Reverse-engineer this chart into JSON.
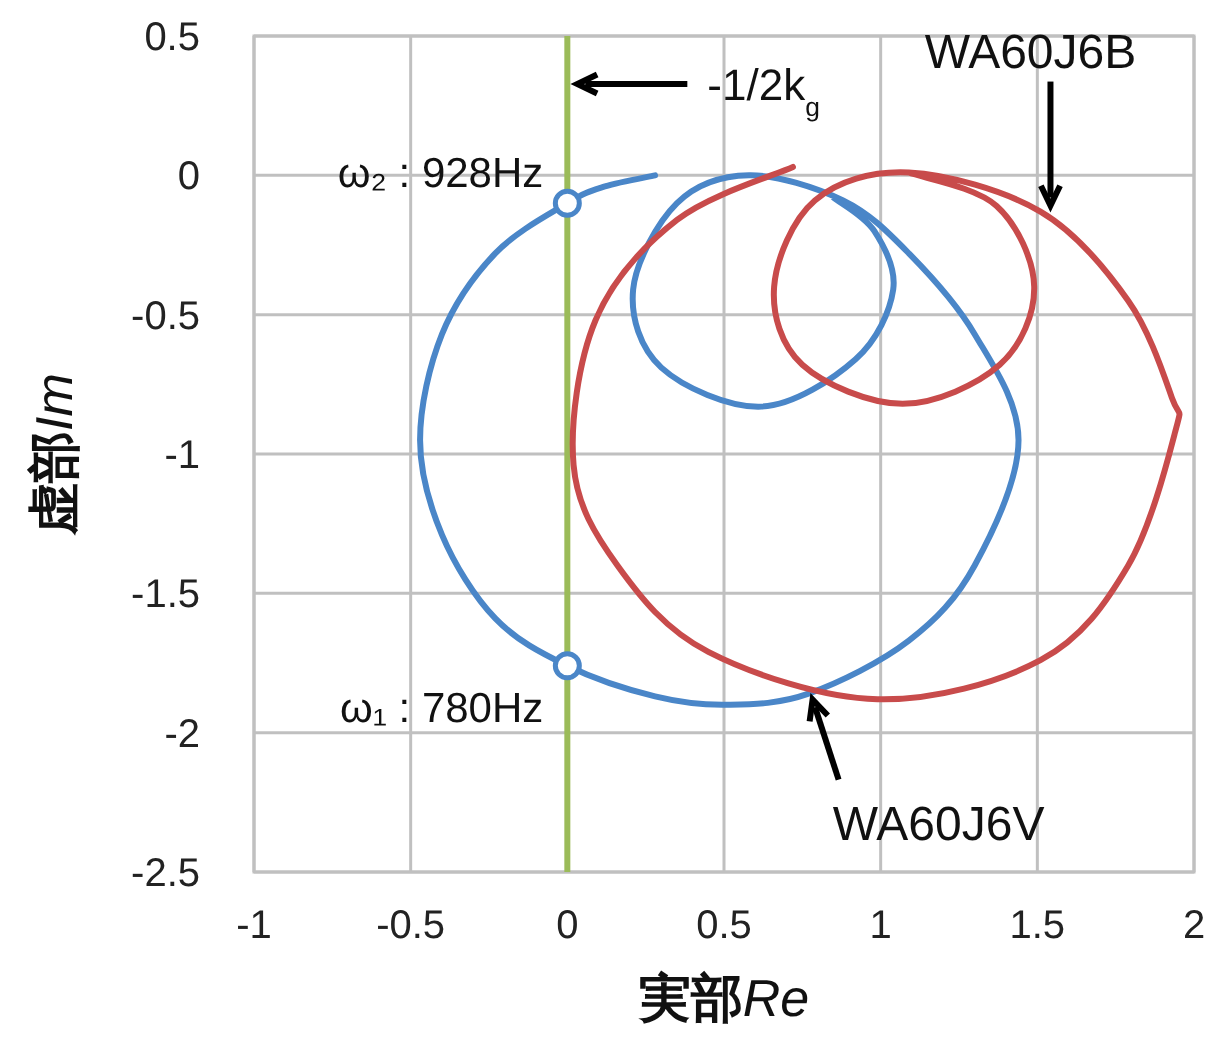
{
  "chart_data": {
    "type": "line",
    "xlabel": "実部Re",
    "ylabel": "虚部Im",
    "xlim": [
      -1,
      2
    ],
    "ylim": [
      -2.5,
      0.5
    ],
    "xticks": [
      -1,
      -0.5,
      0,
      0.5,
      1,
      1.5,
      2
    ],
    "yticks": [
      0.5,
      0,
      -0.5,
      -1,
      -1.5,
      -2,
      -2.5
    ],
    "grid": true,
    "marker": "none",
    "line_style": "solid",
    "series": [
      {
        "name": "WA60J6V",
        "color": "#4a86c8",
        "x": [
          0.28,
          0.12,
          0,
          -0.23,
          -0.4,
          -0.47,
          -0.4,
          -0.23,
          0,
          0.28,
          0.51,
          0.77,
          1.09,
          1.3,
          1.44,
          1.3,
          1.09,
          0.88,
          0.58,
          0.35,
          0.21,
          0.3,
          0.62,
          0.92,
          1.04,
          0.98,
          0.85
        ],
        "values": [
          0,
          -0.04,
          -0.1,
          -0.28,
          -0.57,
          -0.95,
          -1.29,
          -1.59,
          -1.76,
          -1.87,
          -1.9,
          -1.86,
          -1.67,
          -1.4,
          -0.95,
          -0.57,
          -0.28,
          -0.09,
          0,
          -0.1,
          -0.41,
          -0.69,
          -0.83,
          -0.66,
          -0.41,
          -0.2,
          -0.08
        ]
      },
      {
        "name": "WA60J6B",
        "color": "#c84b4b",
        "x": [
          0.72,
          0.35,
          0.09,
          0.02,
          0.16,
          0.45,
          0.99,
          1.51,
          1.79,
          1.94,
          1.93,
          1.79,
          1.51,
          1.09,
          0.79,
          0.66,
          0.75,
          1.07,
          1.38,
          1.49,
          1.37,
          1.09
        ],
        "values": [
          0.03,
          -0.16,
          -0.52,
          -1.04,
          -1.4,
          -1.71,
          -1.88,
          -1.74,
          -1.4,
          -0.92,
          -0.8,
          -0.45,
          -0.13,
          0.01,
          -0.09,
          -0.4,
          -0.68,
          -0.82,
          -0.68,
          -0.4,
          -0.11,
          0.01
        ]
      },
      {
        "type": "scatter",
        "marker": "circle",
        "color": "#4a86c8",
        "x": [
          0,
          0
        ],
        "values": [
          -0.1,
          -1.76
        ]
      }
    ],
    "ref_lines": [
      {
        "axis": "x",
        "value": 0,
        "label": "-1/2k$_{g}$",
        "color": "#9bbb59"
      }
    ],
    "annotations": [
      {
        "text": "ω₂ : 928Hz",
        "x": 0,
        "y": -0.1
      },
      {
        "text": "ω₁ : 780Hz",
        "x": 0,
        "y": -1.76
      }
    ]
  }
}
